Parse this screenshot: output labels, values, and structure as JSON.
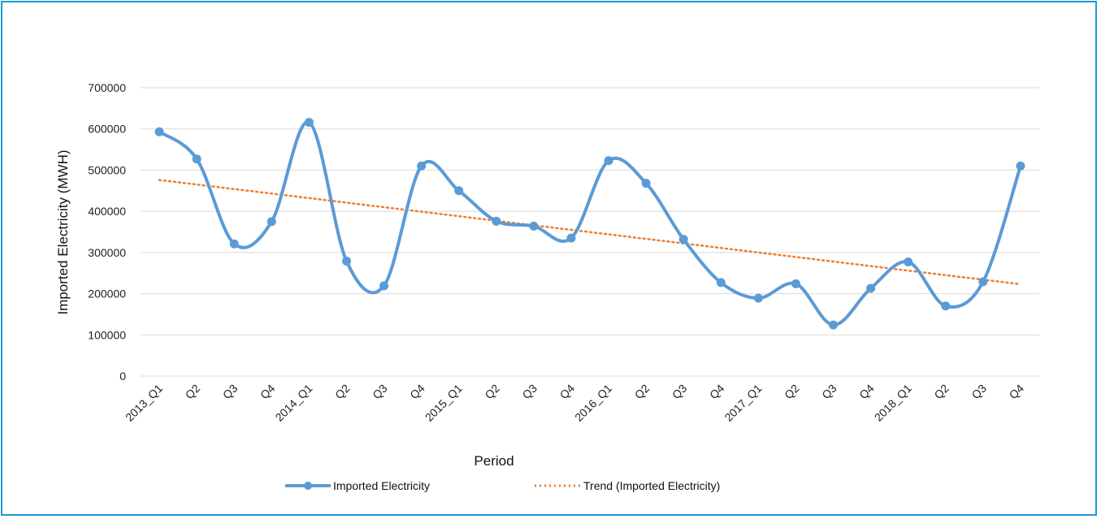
{
  "chart_data": {
    "type": "line",
    "title": "",
    "xlabel": "Period",
    "ylabel": "Imported Electricity (MWH)",
    "ylim": [
      0,
      700000
    ],
    "yticks": [
      "0",
      "100000",
      "200000",
      "300000",
      "400000",
      "500000",
      "600000",
      "700000"
    ],
    "categories": [
      "2013_Q1",
      "Q2",
      "Q3",
      "Q4",
      "2014_Q1",
      "Q2",
      "Q3",
      "Q4",
      "2015_Q1",
      "Q2",
      "Q3",
      "Q4",
      "2016_Q1",
      "Q2",
      "Q3",
      "Q4",
      "2017_Q1",
      "Q2",
      "Q3",
      "Q4",
      "2018_Q1",
      "Q2",
      "Q3",
      "Q4"
    ],
    "grid": true,
    "legend_position": "bottom",
    "series": [
      {
        "name": "Imported Electricity",
        "color": "#5b9bd5",
        "style": "smoothed line with circle markers",
        "values": [
          593000,
          527000,
          321000,
          375000,
          616000,
          279000,
          219000,
          510000,
          450000,
          376000,
          364000,
          335000,
          523000,
          468000,
          332000,
          227000,
          189000,
          224000,
          124000,
          213000,
          277000,
          170000,
          229000,
          510000
        ]
      },
      {
        "name": "Trend (Imported Electricity)",
        "color": "#ed7d31",
        "style": "dotted linear trendline",
        "values": [
          476000,
          465000,
          454000,
          443000,
          432000,
          421000,
          410000,
          399000,
          388000,
          377000,
          366000,
          355000,
          344000,
          333000,
          322000,
          311000,
          300000,
          289000,
          278000,
          267000,
          256000,
          245000,
          234000,
          223000
        ]
      }
    ]
  }
}
